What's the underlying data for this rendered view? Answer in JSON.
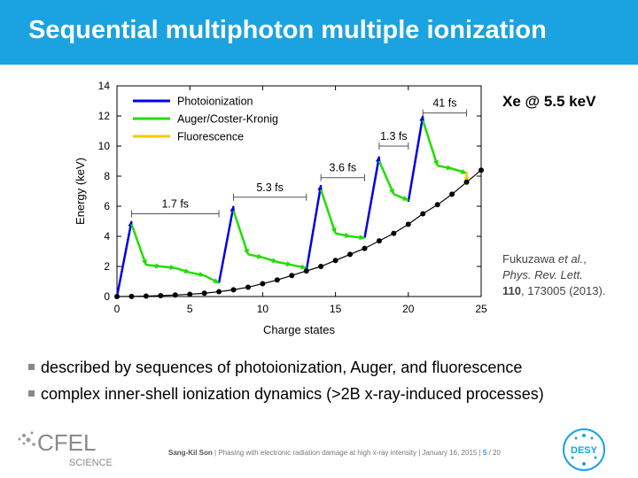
{
  "title": "Sequential multiphoton multiple ionization",
  "note": "Xe @ 5.5 keV",
  "citation": {
    "authors": "Fukuzawa",
    "etal": "et al.",
    "journal": "Phys. Rev. Lett.",
    "volume": "110",
    "ref": ", 173005 (2013)."
  },
  "bullets": [
    "described by sequences of photoionization, Auger, and fluorescence",
    "complex inner-shell ionization dynamics (>2B x-ray-induced processes)"
  ],
  "footer": {
    "author": "Sang-Kil Son",
    "talk": "Phasing with electronic radiation damage at high x-ray intensity",
    "date": "January 16, 2015",
    "page": "5",
    "total": "/ 20"
  },
  "logos": {
    "cfel_name": "CFEL",
    "cfel_sub": "SCIENCE",
    "desy": "DESY"
  },
  "colors": {
    "title_bar": "#1aa3e0",
    "photoionization": "#0000e6",
    "auger": "#22dd00",
    "fluorescence": "#f5c800"
  },
  "chart_data": {
    "type": "line",
    "xlabel": "Charge states",
    "ylabel": "Energy (keV)",
    "xlim": [
      0,
      25
    ],
    "ylim": [
      0,
      14
    ],
    "xticks": [
      0,
      5,
      10,
      15,
      20,
      25
    ],
    "yticks": [
      0,
      2,
      4,
      6,
      8,
      10,
      12,
      14
    ],
    "grid": false,
    "legend_position": "top-left",
    "legend": [
      "Photoionization",
      "Auger/Coster-Kronig",
      "Fluorescence"
    ],
    "energy_curve": {
      "x": [
        0,
        1,
        2,
        3,
        4,
        5,
        6,
        7,
        8,
        9,
        10,
        11,
        12,
        13,
        14,
        15,
        16,
        17,
        18,
        19,
        20,
        21,
        22,
        23,
        24,
        25
      ],
      "y": [
        0,
        0.01,
        0.03,
        0.06,
        0.1,
        0.15,
        0.22,
        0.32,
        0.45,
        0.62,
        0.85,
        1.1,
        1.4,
        1.7,
        2.0,
        2.4,
        2.8,
        3.2,
        3.7,
        4.2,
        4.8,
        5.5,
        6.1,
        6.8,
        7.6,
        8.4
      ]
    },
    "series": [
      {
        "name": "Photoionization",
        "segments": [
          [
            [
              0,
              0
            ],
            [
              1,
              5
            ]
          ],
          [
            [
              7,
              0.9
            ],
            [
              8,
              6
            ]
          ],
          [
            [
              13,
              1.7
            ],
            [
              14,
              7.4
            ]
          ],
          [
            [
              17,
              3.9
            ],
            [
              18,
              9.3
            ]
          ],
          [
            [
              20,
              6.3
            ],
            [
              21,
              12
            ]
          ]
        ]
      },
      {
        "name": "Auger/Coster-Kronig",
        "segments": [
          [
            [
              1,
              4.8
            ],
            [
              2,
              2.1
            ],
            [
              3,
              2.0
            ],
            [
              4,
              1.9
            ],
            [
              5,
              1.6
            ],
            [
              6,
              1.4
            ],
            [
              7,
              0.9
            ]
          ],
          [
            [
              8,
              5.7
            ],
            [
              9,
              2.8
            ],
            [
              10,
              2.6
            ],
            [
              11,
              2.3
            ],
            [
              12,
              2.1
            ],
            [
              13,
              1.9
            ]
          ],
          [
            [
              14,
              7.1
            ],
            [
              15,
              4.2
            ],
            [
              16,
              4.0
            ],
            [
              17,
              3.9
            ]
          ],
          [
            [
              18,
              9.0
            ],
            [
              19,
              6.8
            ],
            [
              20,
              6.4
            ]
          ],
          [
            [
              21,
              11.7
            ],
            [
              22,
              8.7
            ],
            [
              23,
              8.5
            ],
            [
              24,
              8.2
            ]
          ]
        ]
      },
      {
        "name": "Fluorescence",
        "segments": [
          [
            [
              24,
              8.3
            ],
            [
              24,
              7.6
            ]
          ]
        ]
      }
    ],
    "annotations": [
      {
        "label": "1.7 fs",
        "x1": 1,
        "x2": 7,
        "y": 5.5
      },
      {
        "label": "5.3 fs",
        "x1": 8,
        "x2": 13,
        "y": 6.6
      },
      {
        "label": "3.6 fs",
        "x1": 14,
        "x2": 17,
        "y": 7.9
      },
      {
        "label": "1.3 fs",
        "x1": 18,
        "x2": 20,
        "y": 10.0
      },
      {
        "label": "41 fs",
        "x1": 21,
        "x2": 24,
        "y": 12.2
      }
    ]
  }
}
